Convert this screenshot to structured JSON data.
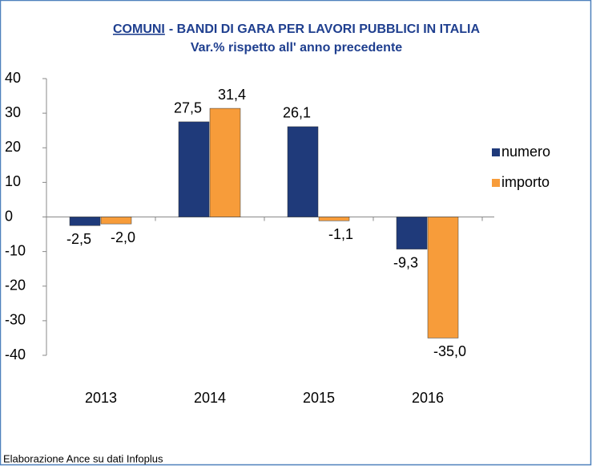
{
  "chart_data": {
    "type": "bar",
    "title_underlined": "COMUNI",
    "title": "- BANDI DI GARA PER LAVORI PUBBLICI IN ITALIA",
    "subtitle": "Var.% rispetto all' anno precedente",
    "source": "Elaborazione Ance su dati Infoplus",
    "categories": [
      "2013",
      "2014",
      "2015",
      "2016"
    ],
    "series": [
      {
        "name": "numero",
        "color": "#1f3a7a",
        "values": [
          -2.5,
          27.5,
          26.1,
          -9.3
        ],
        "value_labels": [
          "-2,5",
          "27,5",
          "26,1",
          "-9,3"
        ]
      },
      {
        "name": "importo",
        "color": "#f79c3a",
        "values": [
          -2.0,
          31.4,
          -1.1,
          -35.0
        ],
        "value_labels": [
          "-2,0",
          "31,4",
          "-1,1",
          "-35,0"
        ]
      }
    ],
    "ylim": [
      -40,
      40
    ],
    "yticks": [
      -40,
      -30,
      -20,
      -10,
      0,
      10,
      20,
      30,
      40
    ],
    "grid": false,
    "legend": "right"
  }
}
